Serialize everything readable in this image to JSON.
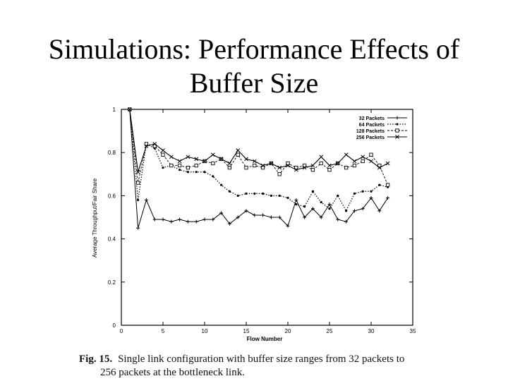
{
  "slide": {
    "title_line1": "Simulations: Performance Effects of",
    "title_line2": "Buffer Size"
  },
  "caption": {
    "fig_label": "Fig. 15.",
    "line1": "Single link configuration with buffer size ranges from 32 packets to",
    "line2": "256 packets at the bottleneck link."
  },
  "chart_data": {
    "type": "line",
    "title": "",
    "xlabel": "Flow Number",
    "ylabel": "Average Throughput/Fair Share",
    "xlim": [
      0,
      35
    ],
    "ylim": [
      0,
      1
    ],
    "xticks": [
      0,
      5,
      10,
      15,
      20,
      25,
      30,
      35
    ],
    "xtick_labels": [
      "0",
      "5",
      "10",
      "15",
      "20",
      "25",
      "30",
      "35"
    ],
    "yticks": [
      0,
      0.2,
      0.4,
      0.6,
      0.8,
      1
    ],
    "ytick_labels": [
      "0",
      "0.2",
      "0.4",
      "0.6",
      "0.8",
      "1"
    ],
    "legend_position": "top-right",
    "x": [
      1,
      2,
      3,
      4,
      5,
      6,
      7,
      8,
      9,
      10,
      11,
      12,
      13,
      14,
      15,
      16,
      17,
      18,
      19,
      20,
      21,
      22,
      23,
      24,
      25,
      26,
      27,
      28,
      29,
      30,
      31,
      32
    ],
    "series": [
      {
        "name": "32 Packets",
        "marker": "plus",
        "values": [
          1.0,
          0.45,
          0.58,
          0.49,
          0.49,
          0.48,
          0.49,
          0.48,
          0.48,
          0.49,
          0.49,
          0.52,
          0.47,
          0.5,
          0.53,
          0.51,
          0.51,
          0.5,
          0.5,
          0.46,
          0.58,
          0.5,
          0.54,
          0.5,
          0.56,
          0.49,
          0.48,
          0.53,
          0.54,
          0.59,
          0.53,
          0.59
        ]
      },
      {
        "name": "64 Packets",
        "marker": "dot",
        "values": [
          1.0,
          0.58,
          0.84,
          0.82,
          0.73,
          0.74,
          0.72,
          0.71,
          0.71,
          0.71,
          0.69,
          0.65,
          0.62,
          0.6,
          0.61,
          0.61,
          0.61,
          0.6,
          0.6,
          0.59,
          0.56,
          0.55,
          0.62,
          0.57,
          0.54,
          0.6,
          0.53,
          0.61,
          0.62,
          0.62,
          0.65,
          0.64
        ]
      },
      {
        "name": "128 Packets",
        "marker": "square",
        "values": [
          1.0,
          0.66,
          0.84,
          0.83,
          0.79,
          0.74,
          0.74,
          0.73,
          0.74,
          0.76,
          0.75,
          0.77,
          0.73,
          0.79,
          0.73,
          0.74,
          0.73,
          0.75,
          0.7,
          0.75,
          0.73,
          0.74,
          0.72,
          0.75,
          0.72,
          0.75,
          0.73,
          0.74,
          0.76,
          0.79,
          0.74,
          0.65
        ]
      },
      {
        "name": "256 Packets",
        "marker": "cross",
        "values": [
          1.0,
          0.71,
          0.83,
          0.84,
          0.81,
          0.78,
          0.76,
          0.78,
          0.77,
          0.76,
          0.79,
          0.77,
          0.75,
          0.81,
          0.77,
          0.76,
          0.74,
          0.75,
          0.73,
          0.74,
          0.72,
          0.73,
          0.74,
          0.78,
          0.74,
          0.75,
          0.79,
          0.76,
          0.78,
          0.76,
          0.73,
          0.75
        ]
      }
    ]
  }
}
